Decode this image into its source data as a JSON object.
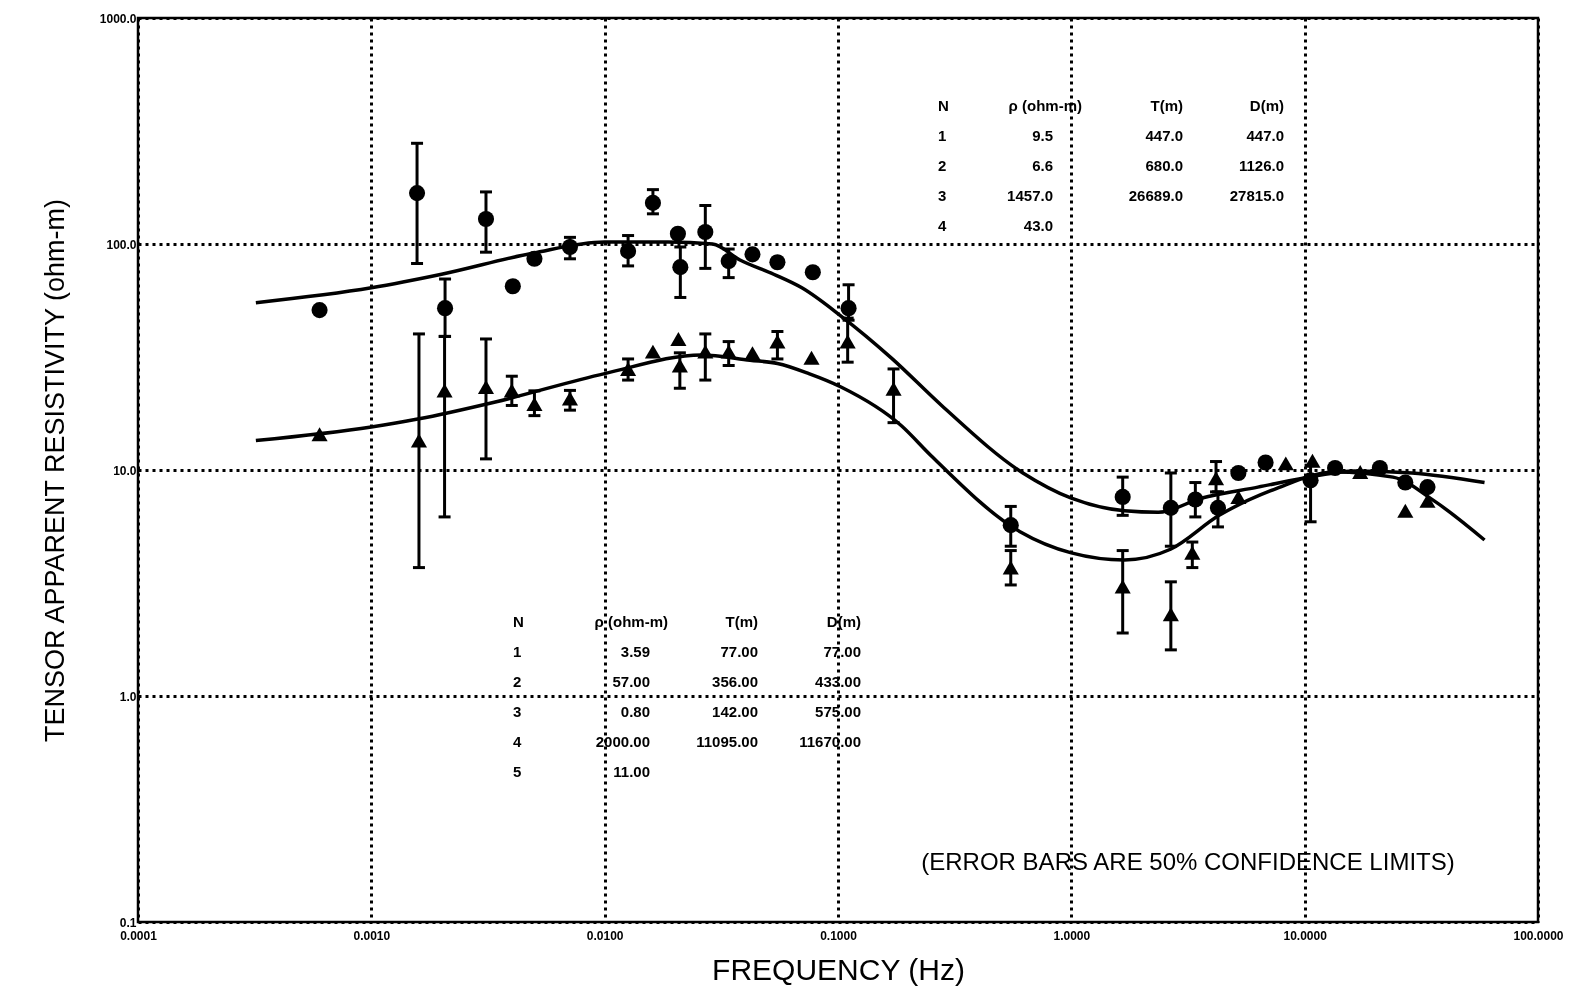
{
  "chart_data": {
    "type": "scatter",
    "xlabel": "FREQUENCY (Hz)",
    "ylabel": "TENSOR APPARENT RESISTIVITY (ohm-m)",
    "log": "xy",
    "grid": true,
    "xlim": [
      0.0001,
      100
    ],
    "ylim": [
      0.1,
      1000
    ],
    "xticks": [
      {
        "value": 0.0001,
        "label": "0.0001"
      },
      {
        "value": 0.001,
        "label": "0.0010"
      },
      {
        "value": 0.01,
        "label": "0.0100"
      },
      {
        "value": 0.1,
        "label": "0.1000"
      },
      {
        "value": 1,
        "label": "1.0000"
      },
      {
        "value": 10,
        "label": "10.0000"
      },
      {
        "value": 100,
        "label": "100.0000"
      }
    ],
    "yticks": [
      {
        "value": 0.1,
        "label": "0.1"
      },
      {
        "value": 1,
        "label": "1.0"
      },
      {
        "value": 10,
        "label": "10.0"
      },
      {
        "value": 100,
        "label": "100.0"
      },
      {
        "value": 1000,
        "label": "1000.0"
      }
    ],
    "series": [
      {
        "marker": "circle",
        "color": "#000000",
        "x": [
          0.0006,
          0.00157,
          0.00207,
          0.0031,
          0.00404,
          0.005,
          0.0071,
          0.0126,
          0.0161,
          0.0206,
          0.0211,
          0.027,
          0.034,
          0.043,
          0.055,
          0.078,
          0.111,
          0.55,
          1.66,
          2.67,
          3.4,
          4.25,
          5.2,
          6.8,
          10.6,
          13.5,
          21,
          27,
          33.6
        ],
        "values": [
          51,
          168,
          52,
          129,
          65,
          86,
          97,
          93,
          152,
          111,
          79,
          113,
          84,
          90,
          83,
          75,
          52,
          5.7,
          7.6,
          6.8,
          7.4,
          6.8,
          9.7,
          10.8,
          9.0,
          10.2,
          10.2,
          8.8,
          8.4
        ],
        "errors": [
          null,
          [
            82,
            279
          ],
          [
            39,
            70
          ],
          [
            92,
            170
          ],
          null,
          null,
          [
            86,
            107
          ],
          [
            80,
            109
          ],
          [
            136,
            174
          ],
          null,
          [
            58,
            97
          ],
          [
            78,
            148
          ],
          [
            71,
            95
          ],
          null,
          null,
          null,
          [
            46,
            66
          ],
          [
            4.6,
            6.9
          ],
          [
            6.3,
            9.3
          ],
          [
            4.6,
            9.7
          ],
          [
            6.2,
            8.8
          ],
          [
            5.6,
            8.0
          ],
          null,
          null,
          [
            5.9,
            10.5
          ],
          null,
          null,
          null,
          null
        ]
      },
      {
        "marker": "triangle",
        "color": "#000000",
        "x": [
          0.0006,
          0.0016,
          0.00206,
          0.0031,
          0.004,
          0.005,
          0.0071,
          0.0126,
          0.0161,
          0.0207,
          0.021,
          0.027,
          0.034,
          0.043,
          0.055,
          0.077,
          0.11,
          0.173,
          0.55,
          1.66,
          2.67,
          3.3,
          4.17,
          5.2,
          8.3,
          10.8,
          17.3,
          27,
          33.6
        ],
        "values": [
          14.4,
          13.5,
          22.5,
          23.3,
          22.5,
          19.6,
          20.7,
          28,
          33.4,
          38,
          29,
          33.4,
          33.4,
          32.9,
          37,
          31.4,
          37,
          22.9,
          3.7,
          3.05,
          2.3,
          4.3,
          9.2,
          7.6,
          10.7,
          11.0,
          9.8,
          6.6,
          7.3
        ],
        "errors": [
          null,
          [
            3.7,
            40
          ],
          [
            6.2,
            39
          ],
          [
            11.2,
            38
          ],
          [
            19.3,
            26
          ],
          [
            17.4,
            22.4
          ],
          [
            18.4,
            22.5
          ],
          [
            25,
            31
          ],
          null,
          null,
          [
            23,
            33
          ],
          [
            25,
            40
          ],
          [
            29,
            37
          ],
          null,
          [
            31,
            41
          ],
          null,
          [
            30,
            47
          ],
          [
            16.2,
            28
          ],
          [
            3.1,
            4.4
          ],
          [
            1.9,
            4.4
          ],
          [
            1.6,
            3.2
          ],
          [
            3.7,
            4.8
          ],
          [
            8.0,
            10.9
          ],
          null,
          null,
          null,
          null,
          null,
          null
        ]
      },
      {
        "type": "line",
        "color": "#000000",
        "x": [
          0.00032,
          0.001,
          0.002,
          0.0049,
          0.01,
          0.0187,
          0.029,
          0.038,
          0.053,
          0.07,
          0.103,
          0.17,
          0.278,
          0.62,
          1.0,
          1.69,
          2.36,
          3.6,
          6.3,
          11.1,
          16.3,
          28.8,
          59
        ],
        "values": [
          55,
          64,
          73.5,
          91,
          102,
          102,
          100,
          85,
          73.5,
          64,
          48,
          31.2,
          19.3,
          9.7,
          7.5,
          6.6,
          6.5,
          7.5,
          8.4,
          9.4,
          9.9,
          9.7,
          8.8
        ]
      },
      {
        "type": "line",
        "color": "#000000",
        "x": [
          0.00032,
          0.001,
          0.00158,
          0.0034,
          0.01,
          0.026,
          0.042,
          0.055,
          0.075,
          0.103,
          0.187,
          0.25,
          0.6,
          1.0,
          1.69,
          2.66,
          4.3,
          7.6,
          13.5,
          23.9,
          35.9,
          59
        ],
        "values": [
          13.5,
          15.5,
          16.8,
          20,
          26.7,
          32.3,
          30.6,
          29.6,
          26.7,
          23.3,
          15.7,
          11.6,
          5.35,
          4.3,
          4.0,
          4.46,
          6.3,
          8.3,
          9.8,
          9.3,
          7.3,
          4.9
        ]
      }
    ],
    "annotations": [
      "N  ρ (ohm-m)  T(m)  D(m)",
      "1  9.5  447.0  447.0",
      "2  6.6  680.0  1126.0",
      "3  1457.0  26689.0  27815.0",
      "4  43.0",
      "N  ρ (ohm-m)  T(m)  D(m)",
      "1  3.59  77.00  77.00",
      "2  57.00  356.00  433.00",
      "3  0.80  142.00  575.00",
      "4  2000.00  11095.00  11670.00",
      "5  11.00",
      "(ERROR BARS ARE 50% CONFIDENCE LIMITS)"
    ]
  }
}
